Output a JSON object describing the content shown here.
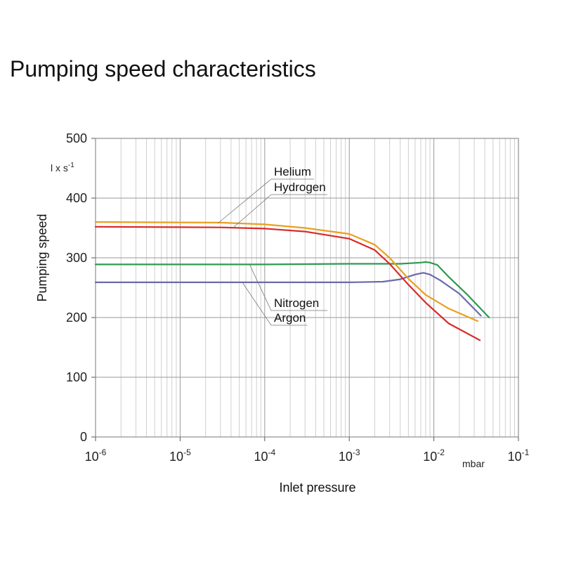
{
  "chart_data": {
    "type": "line",
    "title": "Pumping speed characteristics",
    "xlabel": "Inlet pressure",
    "ylabel": "Pumping speed",
    "x_unit": "mbar",
    "y_unit_base": "l x s",
    "y_unit_exp": "-1",
    "x_scale": "log",
    "xlim": [
      1e-06,
      0.1
    ],
    "ylim": [
      0,
      500
    ],
    "grid": true,
    "legend": "none",
    "x_ticks": [
      {
        "value": 1e-06,
        "base": "10",
        "exp": "-6"
      },
      {
        "value": 1e-05,
        "base": "10",
        "exp": "-5"
      },
      {
        "value": 0.0001,
        "base": "10",
        "exp": "-4"
      },
      {
        "value": 0.001,
        "base": "10",
        "exp": "-3"
      },
      {
        "value": 0.01,
        "base": "10",
        "exp": "-2"
      },
      {
        "value": 0.1,
        "base": "10",
        "exp": "-1"
      }
    ],
    "y_ticks": [
      {
        "value": 0,
        "label": "0"
      },
      {
        "value": 100,
        "label": "100"
      },
      {
        "value": 200,
        "label": "200"
      },
      {
        "value": 300,
        "label": "300"
      },
      {
        "value": 400,
        "label": "400"
      },
      {
        "value": 500,
        "label": "500"
      }
    ],
    "series": [
      {
        "name": "Helium",
        "color": "#e8a020",
        "points": [
          [
            1e-06,
            360
          ],
          [
            3e-05,
            359
          ],
          [
            0.0001,
            356
          ],
          [
            0.0003,
            350
          ],
          [
            0.001,
            340
          ],
          [
            0.002,
            322
          ],
          [
            0.003,
            300
          ],
          [
            0.005,
            265
          ],
          [
            0.008,
            238
          ],
          [
            0.015,
            215
          ],
          [
            0.033,
            194
          ]
        ]
      },
      {
        "name": "Hydrogen",
        "color": "#d82a2a",
        "points": [
          [
            1e-06,
            352
          ],
          [
            3e-05,
            351
          ],
          [
            0.0001,
            349
          ],
          [
            0.0003,
            344
          ],
          [
            0.001,
            332
          ],
          [
            0.002,
            313
          ],
          [
            0.003,
            290
          ],
          [
            0.005,
            255
          ],
          [
            0.008,
            225
          ],
          [
            0.015,
            190
          ],
          [
            0.035,
            162
          ]
        ]
      },
      {
        "name": "Nitrogen",
        "color": "#2e9a52",
        "points": [
          [
            1e-06,
            289
          ],
          [
            0.0001,
            289
          ],
          [
            0.001,
            290
          ],
          [
            0.004,
            290
          ],
          [
            0.007,
            292
          ],
          [
            0.008,
            293
          ],
          [
            0.009,
            292
          ],
          [
            0.011,
            288
          ],
          [
            0.015,
            268
          ],
          [
            0.025,
            238
          ],
          [
            0.045,
            200
          ]
        ]
      },
      {
        "name": "Argon",
        "color": "#6a6aaa",
        "points": [
          [
            1e-06,
            259
          ],
          [
            0.0001,
            259
          ],
          [
            0.001,
            259
          ],
          [
            0.0025,
            260
          ],
          [
            0.004,
            264
          ],
          [
            0.006,
            272
          ],
          [
            0.0075,
            275
          ],
          [
            0.009,
            272
          ],
          [
            0.012,
            262
          ],
          [
            0.02,
            240
          ],
          [
            0.036,
            203
          ]
        ]
      }
    ],
    "annotations": [
      {
        "text": "Helium",
        "series": "Helium",
        "label_x": 390,
        "label_y": 250,
        "target_x": 310,
        "target_y": 318
      },
      {
        "text": "Hydrogen",
        "series": "Hydrogen",
        "label_x": 390,
        "label_y": 272,
        "target_x": 332,
        "target_y": 324
      },
      {
        "text": "Nitrogen",
        "series": "Nitrogen",
        "label_x": 390,
        "label_y": 437,
        "target_x": 355,
        "target_y": 376
      },
      {
        "text": "Argon",
        "series": "Argon",
        "label_x": 390,
        "label_y": 458,
        "target_x": 345,
        "target_y": 402
      }
    ]
  }
}
